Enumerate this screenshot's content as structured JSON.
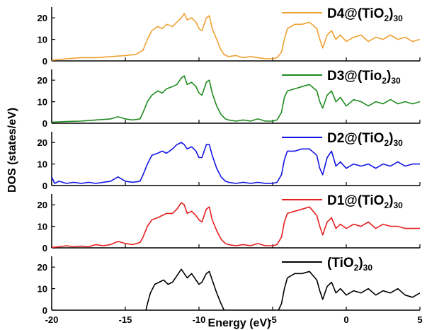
{
  "chart_data": {
    "type": "line",
    "xlabel": "Energy (eV)",
    "ylabel": "DOS (states/eV)",
    "xlim": [
      -20,
      5
    ],
    "ylim": [
      0,
      25
    ],
    "x_ticks": [
      "-20",
      "-15",
      "-10",
      "-5",
      "0",
      "5"
    ],
    "y_ticks": [
      "0",
      "10",
      "20"
    ],
    "panels": [
      {
        "name": "D4@(TiO2)30",
        "legend": {
          "main": "D4@(TiO",
          "sub1": "2",
          "close": ")",
          "sub2": "30"
        },
        "color": "#F0A030",
        "points": [
          [
            -20,
            0.3
          ],
          [
            -19,
            1.0
          ],
          [
            -18,
            1.5
          ],
          [
            -17,
            1.5
          ],
          [
            -16,
            2.0
          ],
          [
            -15,
            2.5
          ],
          [
            -14.3,
            3
          ],
          [
            -13.8,
            5
          ],
          [
            -13.5,
            10
          ],
          [
            -13.2,
            14
          ],
          [
            -12.8,
            16
          ],
          [
            -12.5,
            15
          ],
          [
            -12.2,
            17
          ],
          [
            -11.8,
            16
          ],
          [
            -11.5,
            18
          ],
          [
            -11.2,
            20
          ],
          [
            -11,
            22
          ],
          [
            -10.8,
            19
          ],
          [
            -10.5,
            20
          ],
          [
            -10.2,
            18
          ],
          [
            -10,
            15
          ],
          [
            -9.8,
            14
          ],
          [
            -9.5,
            20
          ],
          [
            -9.3,
            21
          ],
          [
            -9.1,
            15
          ],
          [
            -8.8,
            10
          ],
          [
            -8.5,
            5
          ],
          [
            -8.3,
            3
          ],
          [
            -8,
            2
          ],
          [
            -7.5,
            2.5
          ],
          [
            -7,
            1.5
          ],
          [
            -6.5,
            2
          ],
          [
            -6,
            1.5
          ],
          [
            -5.5,
            1
          ],
          [
            -5,
            1
          ],
          [
            -4.7,
            1.5
          ],
          [
            -4.4,
            4
          ],
          [
            -4.2,
            10
          ],
          [
            -4,
            15
          ],
          [
            -3.5,
            17
          ],
          [
            -3,
            17
          ],
          [
            -2.5,
            18
          ],
          [
            -2,
            15
          ],
          [
            -1.8,
            10
          ],
          [
            -1.6,
            6
          ],
          [
            -1.3,
            12
          ],
          [
            -1,
            14
          ],
          [
            -0.7,
            10
          ],
          [
            -0.4,
            12
          ],
          [
            0,
            9
          ],
          [
            0.5,
            11
          ],
          [
            1,
            12
          ],
          [
            1.5,
            9
          ],
          [
            2,
            11
          ],
          [
            2.5,
            10
          ],
          [
            3,
            12
          ],
          [
            3.5,
            10
          ],
          [
            4,
            11
          ],
          [
            4.5,
            9
          ],
          [
            5,
            10
          ]
        ]
      },
      {
        "name": "D3@(Tio2)30",
        "legend": {
          "main": "D3@(Tio",
          "sub1": "2",
          "close": ")",
          "sub2": "30"
        },
        "color": "#1E8B1E",
        "points": [
          [
            -20,
            0.5
          ],
          [
            -19,
            0.8
          ],
          [
            -18,
            1.0
          ],
          [
            -17,
            1.5
          ],
          [
            -16,
            2.0
          ],
          [
            -15.5,
            3
          ],
          [
            -15,
            2
          ],
          [
            -14.5,
            1.5
          ],
          [
            -14,
            2
          ],
          [
            -13.8,
            5
          ],
          [
            -13.5,
            10
          ],
          [
            -13.2,
            13
          ],
          [
            -12.8,
            15
          ],
          [
            -12.5,
            14
          ],
          [
            -12.2,
            16
          ],
          [
            -11.8,
            17
          ],
          [
            -11.5,
            18
          ],
          [
            -11.2,
            21
          ],
          [
            -11,
            22
          ],
          [
            -10.8,
            18
          ],
          [
            -10.5,
            19
          ],
          [
            -10.2,
            17
          ],
          [
            -10,
            14
          ],
          [
            -9.8,
            13
          ],
          [
            -9.5,
            19
          ],
          [
            -9.3,
            20
          ],
          [
            -9.1,
            14
          ],
          [
            -8.8,
            8
          ],
          [
            -8.5,
            4
          ],
          [
            -8.2,
            2
          ],
          [
            -8,
            1.5
          ],
          [
            -7.5,
            1
          ],
          [
            -7,
            1.5
          ],
          [
            -6.5,
            1
          ],
          [
            -6,
            2
          ],
          [
            -5.5,
            1
          ],
          [
            -5,
            1
          ],
          [
            -4.7,
            1.5
          ],
          [
            -4.4,
            5
          ],
          [
            -4.2,
            12
          ],
          [
            -4,
            15
          ],
          [
            -3.5,
            16
          ],
          [
            -3,
            17
          ],
          [
            -2.5,
            18
          ],
          [
            -2,
            15
          ],
          [
            -1.8,
            10
          ],
          [
            -1.6,
            7
          ],
          [
            -1.3,
            13
          ],
          [
            -1,
            15
          ],
          [
            -0.7,
            10
          ],
          [
            -0.4,
            12
          ],
          [
            0,
            8
          ],
          [
            0.5,
            11
          ],
          [
            1,
            10
          ],
          [
            1.5,
            8
          ],
          [
            2,
            10
          ],
          [
            2.5,
            9
          ],
          [
            3,
            11
          ],
          [
            3.5,
            9
          ],
          [
            4,
            10
          ],
          [
            4.5,
            9
          ],
          [
            5,
            10
          ]
        ]
      },
      {
        "name": "D2@(TiO2)30",
        "legend": {
          "main": "D2@(TiO",
          "sub1": "2",
          "close": ")",
          "sub2": "30"
        },
        "color": "#1414E6",
        "points": [
          [
            -20,
            4
          ],
          [
            -19.8,
            1
          ],
          [
            -19.5,
            2
          ],
          [
            -19,
            1
          ],
          [
            -18.5,
            1.5
          ],
          [
            -18,
            1
          ],
          [
            -17.5,
            1.5
          ],
          [
            -17,
            1
          ],
          [
            -16.5,
            1.5
          ],
          [
            -16,
            2
          ],
          [
            -15.5,
            4
          ],
          [
            -15,
            2
          ],
          [
            -14.5,
            1.5
          ],
          [
            -14,
            2
          ],
          [
            -13.8,
            5
          ],
          [
            -13.5,
            10
          ],
          [
            -13.2,
            14
          ],
          [
            -12.8,
            15
          ],
          [
            -12.5,
            16
          ],
          [
            -12.2,
            15
          ],
          [
            -11.8,
            17
          ],
          [
            -11.5,
            19
          ],
          [
            -11.2,
            20
          ],
          [
            -11,
            19
          ],
          [
            -10.8,
            17
          ],
          [
            -10.5,
            18
          ],
          [
            -10.2,
            16
          ],
          [
            -10,
            13
          ],
          [
            -9.8,
            13
          ],
          [
            -9.5,
            19
          ],
          [
            -9.3,
            19
          ],
          [
            -9.1,
            14
          ],
          [
            -8.8,
            8
          ],
          [
            -8.5,
            4
          ],
          [
            -8.2,
            2
          ],
          [
            -8,
            1.5
          ],
          [
            -7.5,
            1
          ],
          [
            -7,
            1.5
          ],
          [
            -6.5,
            1
          ],
          [
            -6,
            1.5
          ],
          [
            -5.5,
            1
          ],
          [
            -5,
            1
          ],
          [
            -4.7,
            1.5
          ],
          [
            -4.4,
            5
          ],
          [
            -4.2,
            12
          ],
          [
            -4,
            16
          ],
          [
            -3.5,
            16
          ],
          [
            -3,
            17
          ],
          [
            -2.5,
            17
          ],
          [
            -2,
            14
          ],
          [
            -1.8,
            8
          ],
          [
            -1.6,
            5
          ],
          [
            -1.3,
            13
          ],
          [
            -1,
            16
          ],
          [
            -0.7,
            9
          ],
          [
            -0.4,
            11
          ],
          [
            0,
            8
          ],
          [
            0.5,
            10
          ],
          [
            1,
            9
          ],
          [
            1.5,
            10
          ],
          [
            2,
            8
          ],
          [
            2.5,
            10
          ],
          [
            3,
            9
          ],
          [
            3.5,
            11
          ],
          [
            4,
            9
          ],
          [
            4.5,
            10
          ],
          [
            5,
            10
          ]
        ]
      },
      {
        "name": "D1@(TiO2)30",
        "legend": {
          "main": "D1@(TiO",
          "sub1": "2",
          "close": ")",
          "sub2": "30"
        },
        "color": "#E62020",
        "points": [
          [
            -20,
            0.2
          ],
          [
            -19.5,
            0.5
          ],
          [
            -19,
            1
          ],
          [
            -18.5,
            0.5
          ],
          [
            -18,
            0.8
          ],
          [
            -17.5,
            0.5
          ],
          [
            -17,
            1.5
          ],
          [
            -16.5,
            1
          ],
          [
            -16,
            1.5
          ],
          [
            -15.5,
            3
          ],
          [
            -15,
            2
          ],
          [
            -14.5,
            1.5
          ],
          [
            -14,
            2.5
          ],
          [
            -13.8,
            5
          ],
          [
            -13.5,
            10
          ],
          [
            -13.2,
            13
          ],
          [
            -12.8,
            14
          ],
          [
            -12.5,
            15
          ],
          [
            -12.2,
            16
          ],
          [
            -11.8,
            16
          ],
          [
            -11.5,
            18
          ],
          [
            -11.2,
            21
          ],
          [
            -11,
            20
          ],
          [
            -10.8,
            16
          ],
          [
            -10.5,
            17
          ],
          [
            -10.2,
            15
          ],
          [
            -10,
            13
          ],
          [
            -9.8,
            12
          ],
          [
            -9.5,
            18
          ],
          [
            -9.3,
            19
          ],
          [
            -9.1,
            13
          ],
          [
            -8.8,
            8
          ],
          [
            -8.5,
            4
          ],
          [
            -8.2,
            2
          ],
          [
            -8,
            1.5
          ],
          [
            -7.5,
            1
          ],
          [
            -7,
            1.5
          ],
          [
            -6.5,
            1
          ],
          [
            -6,
            2
          ],
          [
            -5.5,
            1
          ],
          [
            -5,
            1
          ],
          [
            -4.7,
            1.5
          ],
          [
            -4.4,
            5
          ],
          [
            -4.2,
            12
          ],
          [
            -4,
            16
          ],
          [
            -3.5,
            17
          ],
          [
            -3,
            18
          ],
          [
            -2.5,
            19
          ],
          [
            -2,
            15
          ],
          [
            -1.8,
            10
          ],
          [
            -1.6,
            6
          ],
          [
            -1.3,
            12
          ],
          [
            -1,
            14
          ],
          [
            -0.7,
            9
          ],
          [
            -0.4,
            11
          ],
          [
            0,
            9
          ],
          [
            0.5,
            11
          ],
          [
            1,
            10
          ],
          [
            1.5,
            12
          ],
          [
            2,
            9
          ],
          [
            2.5,
            11
          ],
          [
            3,
            10
          ],
          [
            3.5,
            10
          ],
          [
            4,
            9
          ],
          [
            4.5,
            9
          ],
          [
            5,
            9
          ]
        ]
      },
      {
        "name": "(TiO2)30",
        "legend": {
          "main": "(TiO",
          "sub1": "2",
          "close": ")",
          "sub2": "30"
        },
        "color": "#000000",
        "points": [
          [
            -13.6,
            0
          ],
          [
            -13.5,
            3
          ],
          [
            -13.3,
            8
          ],
          [
            -13,
            12
          ],
          [
            -12.7,
            13
          ],
          [
            -12.4,
            14
          ],
          [
            -12.1,
            12
          ],
          [
            -11.8,
            13
          ],
          [
            -11.5,
            16
          ],
          [
            -11.2,
            19
          ],
          [
            -11,
            17
          ],
          [
            -10.8,
            15
          ],
          [
            -10.5,
            17
          ],
          [
            -10.2,
            14
          ],
          [
            -10,
            12
          ],
          [
            -9.8,
            13
          ],
          [
            -9.5,
            17
          ],
          [
            -9.3,
            18
          ],
          [
            -9.1,
            14
          ],
          [
            -8.8,
            8
          ],
          [
            -8.5,
            3
          ],
          [
            -8.3,
            0
          ],
          [
            -4.6,
            0
          ],
          [
            -4.4,
            3
          ],
          [
            -4.2,
            10
          ],
          [
            -4,
            15
          ],
          [
            -3.5,
            17
          ],
          [
            -3,
            17
          ],
          [
            -2.5,
            18
          ],
          [
            -2,
            14
          ],
          [
            -1.8,
            9
          ],
          [
            -1.6,
            5
          ],
          [
            -1.3,
            11
          ],
          [
            -1,
            13
          ],
          [
            -0.7,
            8
          ],
          [
            -0.4,
            10
          ],
          [
            0,
            7
          ],
          [
            0.5,
            9
          ],
          [
            1,
            8
          ],
          [
            1.5,
            10
          ],
          [
            2,
            7
          ],
          [
            2.5,
            9
          ],
          [
            3,
            8
          ],
          [
            3.5,
            10
          ],
          [
            4,
            7
          ],
          [
            4.5,
            6
          ],
          [
            5,
            8
          ]
        ]
      }
    ]
  }
}
